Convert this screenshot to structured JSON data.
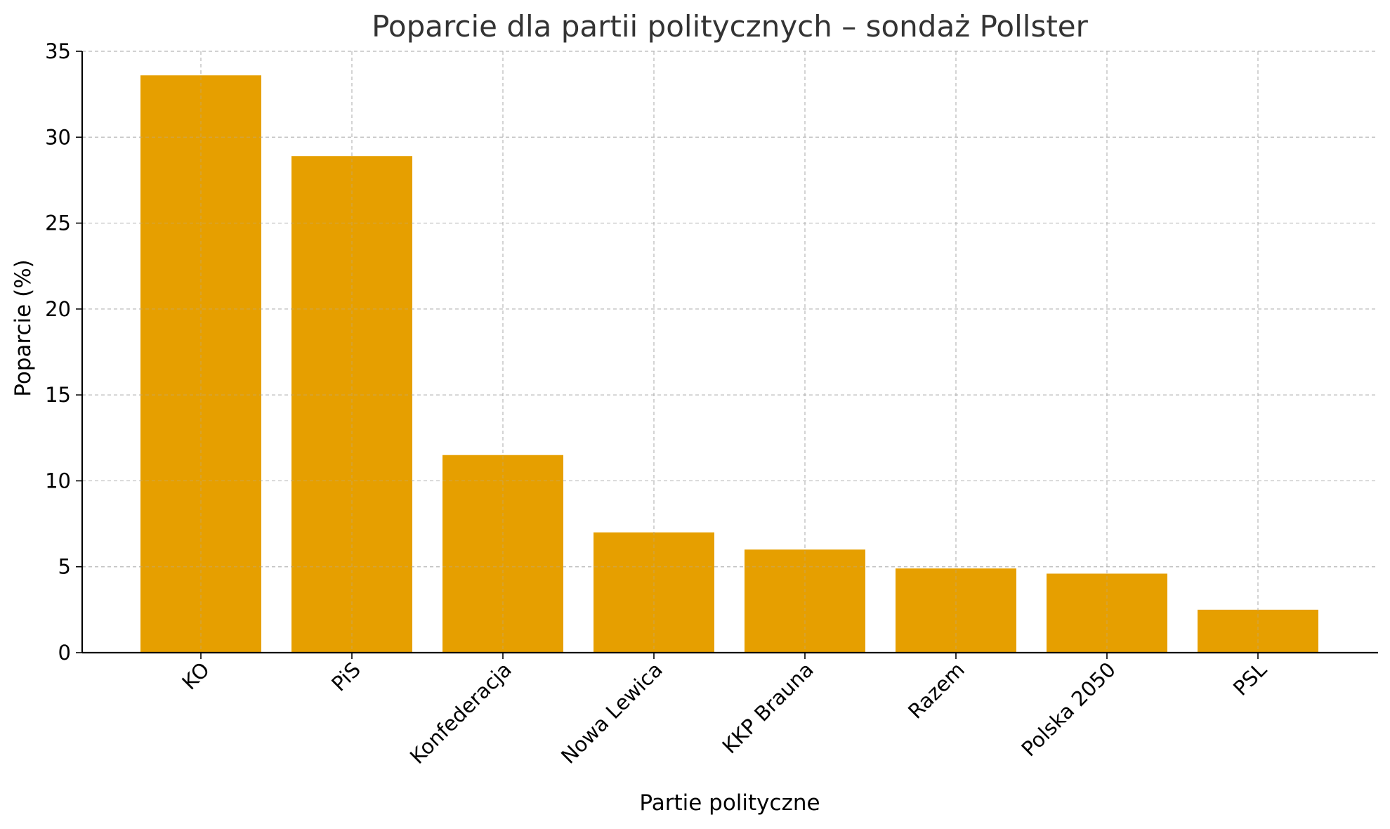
{
  "chart_data": {
    "type": "bar",
    "title": "Poparcie dla partii politycznych – sondaż Pollster",
    "xlabel": "Partie polityczne",
    "ylabel": "Poparcie (%)",
    "categories": [
      "KO",
      "PiS",
      "Konfederacja",
      "Nowa Lewica",
      "KKP Brauna",
      "Razem",
      "Polska 2050",
      "PSL"
    ],
    "values": [
      33.6,
      28.9,
      11.5,
      7.0,
      6.0,
      4.9,
      4.6,
      2.5
    ],
    "ylim": [
      0,
      35
    ],
    "yticks": [
      0,
      5,
      10,
      15,
      20,
      25,
      30,
      35
    ],
    "grid": true,
    "bar_color": "#e69f00"
  }
}
